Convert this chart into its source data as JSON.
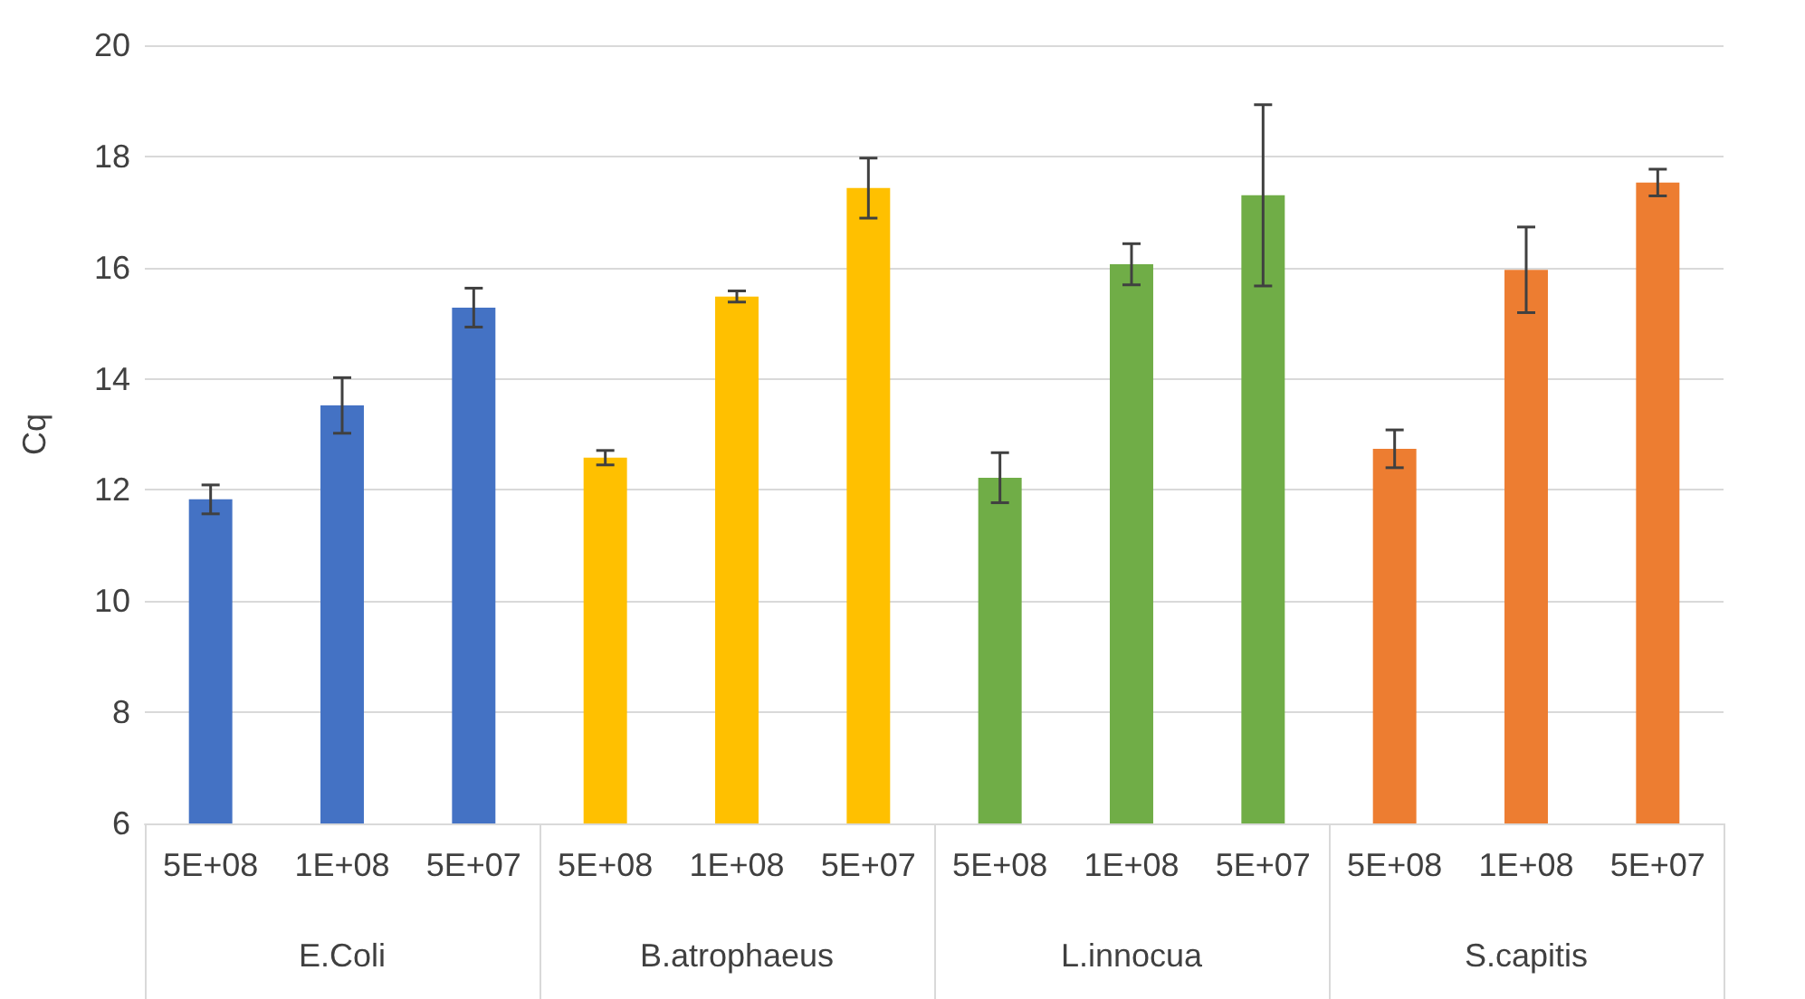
{
  "chart_data": {
    "type": "bar",
    "ylabel": "Cq",
    "categories": [
      "5E+08",
      "1E+08",
      "5E+07",
      "5E+08",
      "1E+08",
      "5E+07",
      "5E+08",
      "1E+08",
      "5E+07",
      "5E+08",
      "1E+08",
      "5E+07"
    ],
    "values": [
      11.83,
      13.52,
      15.28,
      12.58,
      15.48,
      17.43,
      12.22,
      16.06,
      17.3,
      12.74,
      15.96,
      17.53
    ],
    "errors": [
      0.26,
      0.5,
      0.35,
      0.13,
      0.1,
      0.54,
      0.45,
      0.37,
      1.63,
      0.34,
      0.77,
      0.24
    ],
    "colors": [
      "#4472c4",
      "#4472c4",
      "#4472c4",
      "#ffc000",
      "#ffc000",
      "#ffc000",
      "#70ad47",
      "#70ad47",
      "#70ad47",
      "#ed7d31",
      "#ed7d31",
      "#ed7d31"
    ],
    "annotations": [
      "E.Coli",
      "B.atrophaeus",
      "L.innocua",
      "S.capitis"
    ],
    "ylim": [
      6,
      20
    ],
    "yticks": [
      6,
      8,
      10,
      12,
      14,
      16,
      18,
      20
    ],
    "grid": "y"
  }
}
